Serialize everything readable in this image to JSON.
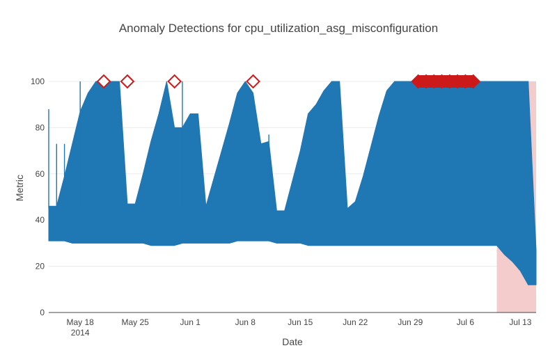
{
  "chart_data": {
    "type": "line",
    "title": "Anomaly Detections for cpu_utilization_asg_misconfiguration",
    "xlabel": "Date",
    "ylabel": "Metric",
    "xlim": [
      "2014-05-14",
      "2014-07-15"
    ],
    "ylim": [
      0,
      100
    ],
    "grid": true,
    "legend": "none",
    "colors": {
      "series": "#1f77b4",
      "markers": "#cc1919",
      "window": "#f4cccc"
    },
    "x_ticks": [
      {
        "date": "2014-05-18",
        "label": "May 18",
        "sublabel": "2014"
      },
      {
        "date": "2014-05-25",
        "label": "May 25"
      },
      {
        "date": "2014-06-01",
        "label": "Jun 1"
      },
      {
        "date": "2014-06-08",
        "label": "Jun 8"
      },
      {
        "date": "2014-06-15",
        "label": "Jun 15"
      },
      {
        "date": "2014-06-22",
        "label": "Jun 22"
      },
      {
        "date": "2014-06-29",
        "label": "Jun 29"
      },
      {
        "date": "2014-07-06",
        "label": "Jul 6"
      },
      {
        "date": "2014-07-13",
        "label": "Jul 13"
      }
    ],
    "y_ticks": [
      0,
      20,
      40,
      60,
      80,
      100
    ],
    "series": [
      {
        "type": "band",
        "x": [
          "2014-05-14",
          "2014-05-15",
          "2014-05-16",
          "2014-05-17",
          "2014-05-18",
          "2014-05-19",
          "2014-05-20",
          "2014-05-21",
          "2014-05-22",
          "2014-05-23",
          "2014-05-24",
          "2014-05-25",
          "2014-05-26",
          "2014-05-27",
          "2014-05-28",
          "2014-05-29",
          "2014-05-30",
          "2014-05-31",
          "2014-06-01",
          "2014-06-02",
          "2014-06-03",
          "2014-06-04",
          "2014-06-05",
          "2014-06-06",
          "2014-06-07",
          "2014-06-08",
          "2014-06-09",
          "2014-06-10",
          "2014-06-11",
          "2014-06-12",
          "2014-06-13",
          "2014-06-14",
          "2014-06-15",
          "2014-06-16",
          "2014-06-17",
          "2014-06-18",
          "2014-06-19",
          "2014-06-20",
          "2014-06-21",
          "2014-06-22",
          "2014-06-23",
          "2014-06-24",
          "2014-06-25",
          "2014-06-26",
          "2014-06-27",
          "2014-06-28",
          "2014-06-29",
          "2014-06-30",
          "2014-07-01",
          "2014-07-02",
          "2014-07-03",
          "2014-07-04",
          "2014-07-05",
          "2014-07-06",
          "2014-07-07",
          "2014-07-08",
          "2014-07-09",
          "2014-07-10",
          "2014-07-11",
          "2014-07-12",
          "2014-07-13",
          "2014-07-14",
          "2014-07-15"
        ],
        "high": [
          46,
          46,
          59,
          73,
          87,
          95,
          100,
          100,
          100,
          100,
          47,
          47,
          60,
          74,
          86,
          100,
          80,
          80,
          86,
          86,
          46,
          58,
          70,
          82,
          95,
          100,
          95,
          73,
          74,
          44,
          44,
          57,
          70,
          86,
          90,
          96,
          100,
          100,
          45,
          48,
          59,
          72,
          85,
          96,
          100,
          100,
          100,
          100,
          100,
          100,
          100,
          100,
          100,
          100,
          100,
          100,
          100,
          100,
          100,
          100,
          100,
          100,
          27
        ],
        "low": [
          31,
          31,
          31,
          30,
          30,
          30,
          30,
          30,
          30,
          30,
          30,
          30,
          30,
          29,
          29,
          29,
          29,
          30,
          30,
          30,
          30,
          30,
          30,
          30,
          31,
          31,
          31,
          31,
          31,
          30,
          30,
          30,
          30,
          29,
          29,
          29,
          29,
          29,
          29,
          29,
          29,
          29,
          29,
          29,
          29,
          29,
          29,
          29,
          29,
          29,
          29,
          29,
          29,
          29,
          29,
          29,
          29,
          29,
          25,
          22,
          18,
          12,
          12
        ],
        "color": "#1f77b4"
      }
    ],
    "spikes": [
      {
        "x": "2014-05-14",
        "y": 88
      },
      {
        "x": "2014-05-15",
        "y": 73
      },
      {
        "x": "2014-05-16",
        "y": 73
      },
      {
        "x": "2014-05-18",
        "y": 100
      },
      {
        "x": "2014-05-31",
        "y": 100
      },
      {
        "x": "2014-06-11",
        "y": 77
      }
    ],
    "anomalies": [
      {
        "x": "2014-05-21",
        "y": 100
      },
      {
        "x": "2014-05-24",
        "y": 100
      },
      {
        "x": "2014-05-30",
        "y": 100
      },
      {
        "x": "2014-06-09",
        "y": 100
      },
      {
        "x": "2014-06-30",
        "y": 100
      },
      {
        "x": "2014-07-01",
        "y": 100
      },
      {
        "x": "2014-07-02",
        "y": 100
      },
      {
        "x": "2014-07-03",
        "y": 100
      },
      {
        "x": "2014-07-04",
        "y": 100
      },
      {
        "x": "2014-07-05",
        "y": 100
      },
      {
        "x": "2014-07-06",
        "y": 100
      },
      {
        "x": "2014-07-07",
        "y": 100
      }
    ],
    "anomaly_window": {
      "start": "2014-07-10",
      "end": "2014-07-15"
    }
  }
}
